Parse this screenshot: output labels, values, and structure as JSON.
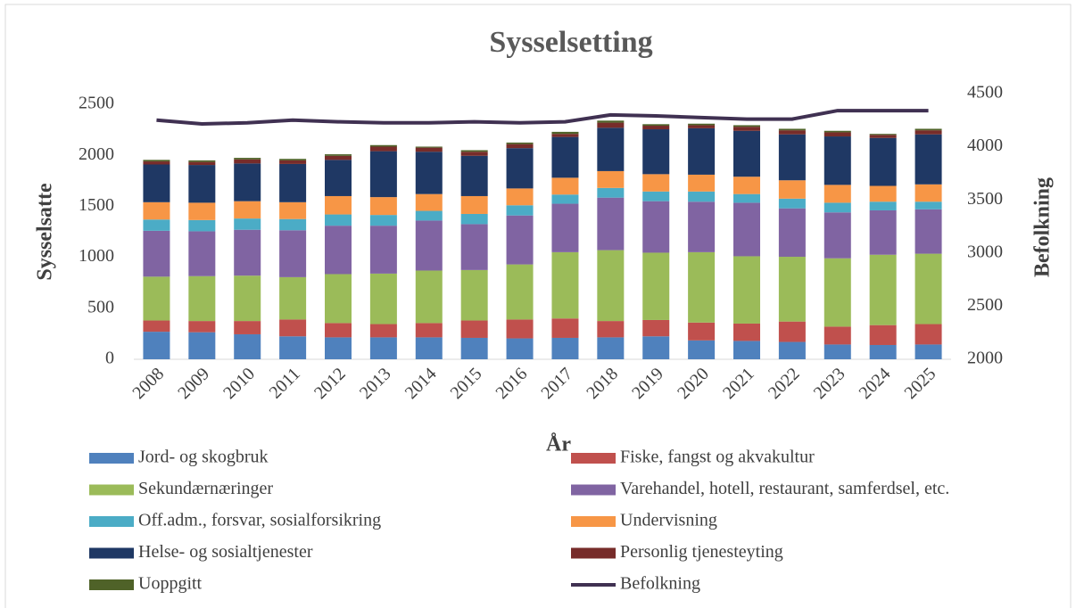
{
  "chart_data": {
    "type": "bar",
    "stacked": true,
    "title": "Sysselsetting",
    "x_label": "År",
    "y_label": "Sysselsatte",
    "y2_label": "Befolkning",
    "categories": [
      "2008",
      "2009",
      "2010",
      "2011",
      "2012",
      "2013",
      "2014",
      "2015",
      "2016",
      "2017",
      "2018",
      "2019",
      "2020",
      "2021",
      "2022",
      "2023",
      "2024",
      "2025"
    ],
    "ylim": [
      0,
      2500
    ],
    "yticks": [
      0,
      500,
      1000,
      1500,
      2000,
      2500
    ],
    "y2lim": [
      2000,
      4500
    ],
    "y2ticks": [
      2000,
      2500,
      3000,
      3500,
      4000,
      4500
    ],
    "legend": "bottom",
    "series": [
      {
        "name": "Jord- og skogbruk",
        "color": "#4f81bd",
        "values": [
          270,
          265,
          245,
          225,
          215,
          215,
          215,
          210,
          205,
          210,
          215,
          225,
          185,
          180,
          170,
          145,
          140,
          145
        ]
      },
      {
        "name": "Fiske, fangst og akvakultur",
        "color": "#c0504d",
        "values": [
          110,
          110,
          130,
          165,
          140,
          130,
          140,
          170,
          185,
          190,
          160,
          160,
          175,
          170,
          200,
          175,
          195,
          200
        ]
      },
      {
        "name": "Sekundærnæringer",
        "color": "#9bbb59",
        "values": [
          430,
          440,
          445,
          415,
          480,
          495,
          515,
          495,
          540,
          650,
          695,
          660,
          690,
          660,
          635,
          670,
          690,
          690
        ]
      },
      {
        "name": "Varehandel, hotell, restaurant, samferdsel, etc.",
        "color": "#8064a2",
        "values": [
          450,
          440,
          450,
          460,
          475,
          470,
          490,
          450,
          480,
          475,
          515,
          505,
          495,
          525,
          475,
          450,
          435,
          435
        ]
      },
      {
        "name": "Off.adm., forsvar, sosialforsikring",
        "color": "#4bacc6",
        "values": [
          110,
          110,
          110,
          110,
          110,
          105,
          95,
          100,
          100,
          90,
          95,
          95,
          100,
          85,
          95,
          95,
          85,
          75
        ]
      },
      {
        "name": "Undervisning",
        "color": "#f79646",
        "values": [
          170,
          170,
          170,
          165,
          180,
          175,
          165,
          175,
          165,
          165,
          165,
          170,
          165,
          170,
          180,
          175,
          155,
          170
        ]
      },
      {
        "name": "Helse- og sosialtjenester",
        "color": "#1f3864",
        "values": [
          370,
          370,
          370,
          375,
          355,
          450,
          415,
          395,
          395,
          400,
          425,
          440,
          455,
          450,
          450,
          475,
          470,
          490
        ]
      },
      {
        "name": "Personlig tjenesteyting",
        "color": "#772c2a",
        "values": [
          30,
          30,
          40,
          35,
          40,
          45,
          40,
          40,
          40,
          30,
          50,
          35,
          30,
          40,
          40,
          40,
          30,
          40
        ]
      },
      {
        "name": "Uoppgitt",
        "color": "#4f6228",
        "values": [
          15,
          15,
          15,
          15,
          15,
          15,
          10,
          15,
          15,
          20,
          20,
          15,
          15,
          15,
          15,
          15,
          10,
          15
        ]
      },
      {
        "name": "Befolkning",
        "color": "#403152",
        "type": "line",
        "axis": "y2",
        "values": [
          4250,
          4215,
          4225,
          4250,
          4235,
          4225,
          4225,
          4235,
          4225,
          4235,
          4300,
          4290,
          4275,
          4260,
          4260,
          4340,
          4340,
          4340
        ]
      }
    ]
  }
}
